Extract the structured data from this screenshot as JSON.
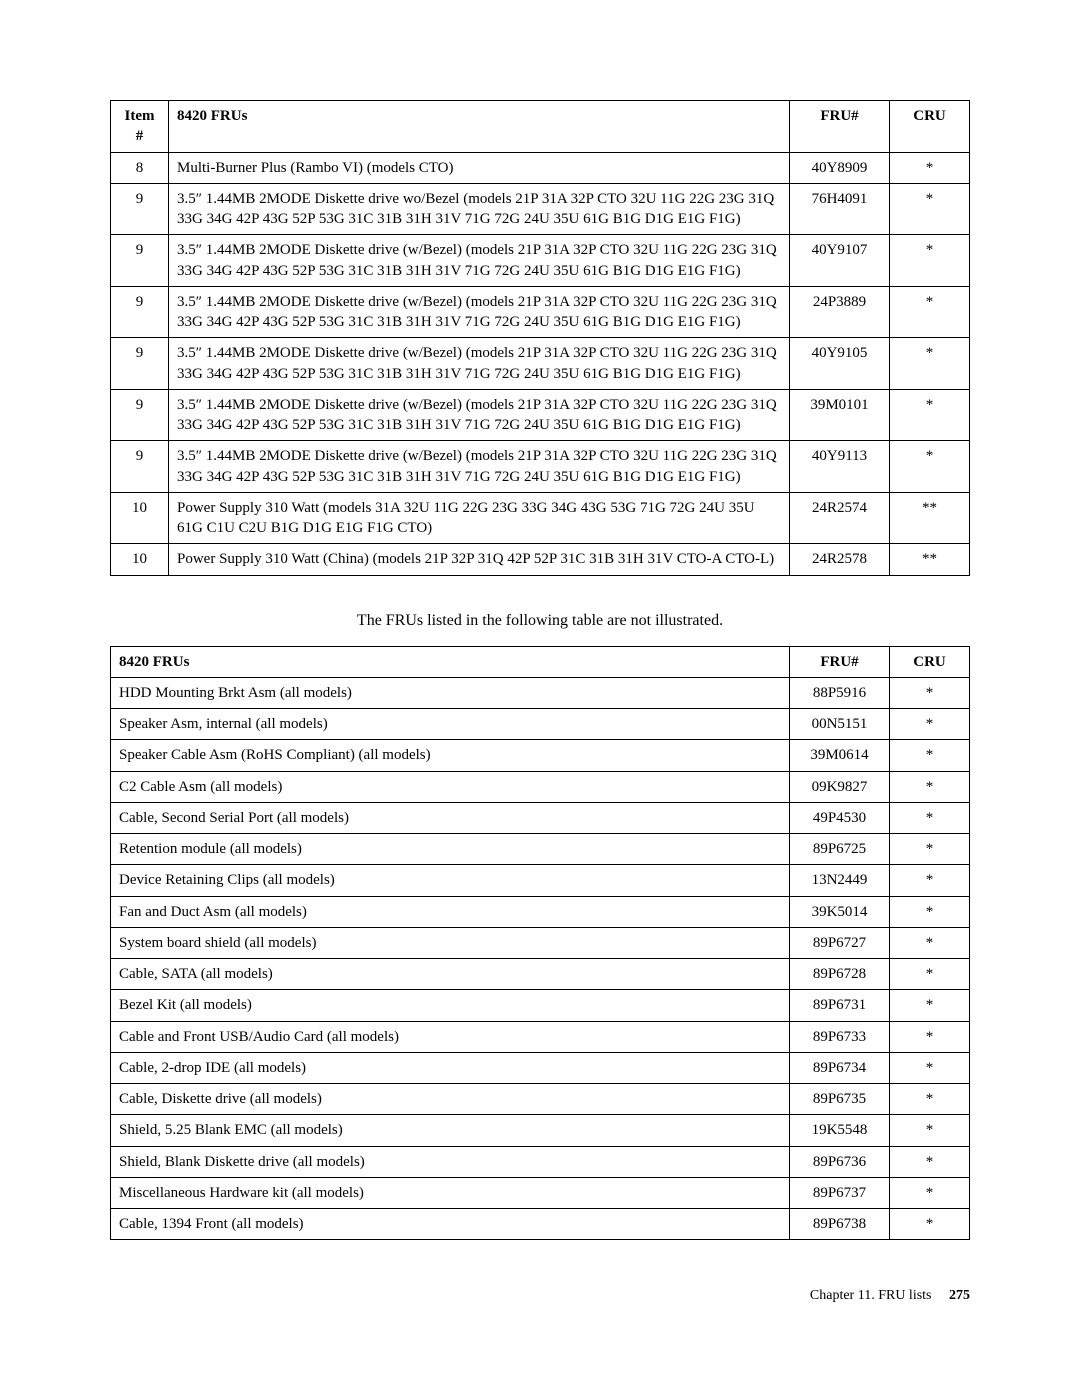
{
  "table1": {
    "headers": {
      "item": "Item #",
      "desc": "8420 FRUs",
      "fru": "FRU#",
      "cru": "CRU"
    },
    "rows": [
      {
        "item": "8",
        "desc": "Multi-Burner Plus (Rambo VI) (models CTO)",
        "fru": "40Y8909",
        "cru": "*"
      },
      {
        "item": "9",
        "desc": "3.5″ 1.44MB 2MODE Diskette drive wo/Bezel (models 21P 31A 32P CTO 32U 11G 22G 23G 31Q 33G 34G 42P 43G 52P 53G 31C 31B 31H 31V 71G 72G 24U 35U 61G B1G D1G E1G F1G)",
        "fru": "76H4091",
        "cru": "*"
      },
      {
        "item": "9",
        "desc": "3.5″ 1.44MB 2MODE Diskette drive (w/Bezel) (models 21P 31A 32P CTO 32U 11G 22G 23G 31Q 33G 34G 42P 43G 52P 53G 31C 31B 31H 31V 71G 72G 24U 35U 61G B1G D1G E1G F1G)",
        "fru": "40Y9107",
        "cru": "*"
      },
      {
        "item": "9",
        "desc": "3.5″ 1.44MB 2MODE Diskette drive (w/Bezel) (models 21P 31A 32P CTO 32U 11G 22G 23G 31Q 33G 34G 42P 43G 52P 53G 31C 31B 31H 31V 71G 72G 24U 35U 61G B1G D1G E1G F1G)",
        "fru": "24P3889",
        "cru": "*"
      },
      {
        "item": "9",
        "desc": "3.5″ 1.44MB 2MODE Diskette drive (w/Bezel) (models 21P 31A 32P CTO 32U 11G 22G 23G 31Q 33G 34G 42P 43G 52P 53G 31C 31B 31H 31V 71G 72G 24U 35U 61G B1G D1G E1G F1G)",
        "fru": "40Y9105",
        "cru": "*"
      },
      {
        "item": "9",
        "desc": "3.5″ 1.44MB 2MODE Diskette drive (w/Bezel) (models 21P 31A 32P CTO 32U 11G 22G 23G 31Q 33G 34G 42P 43G 52P 53G 31C 31B 31H 31V 71G 72G 24U 35U 61G B1G D1G E1G F1G)",
        "fru": "39M0101",
        "cru": "*"
      },
      {
        "item": "9",
        "desc": "3.5″ 1.44MB 2MODE Diskette drive (w/Bezel) (models 21P 31A 32P CTO 32U 11G 22G 23G 31Q 33G 34G 42P 43G 52P 53G 31C 31B 31H 31V 71G 72G 24U 35U 61G B1G D1G E1G F1G)",
        "fru": "40Y9113",
        "cru": "*"
      },
      {
        "item": "10",
        "desc": "Power Supply 310 Watt (models 31A 32U 11G 22G 23G 33G 34G 43G 53G 71G 72G 24U 35U 61G C1U C2U B1G D1G E1G F1G CTO)",
        "fru": "24R2574",
        "cru": "**"
      },
      {
        "item": "10",
        "desc": "Power Supply 310 Watt (China) (models 21P 32P 31Q 42P 52P 31C 31B 31H 31V CTO-A CTO-L)",
        "fru": "24R2578",
        "cru": "**"
      }
    ]
  },
  "caption": "The FRUs listed in the following table are not illustrated.",
  "table2": {
    "headers": {
      "desc": "8420 FRUs",
      "fru": "FRU#",
      "cru": "CRU"
    },
    "rows": [
      {
        "desc": "HDD Mounting Brkt Asm (all models)",
        "fru": "88P5916",
        "cru": "*"
      },
      {
        "desc": "Speaker Asm, internal (all models)",
        "fru": "00N5151",
        "cru": "*"
      },
      {
        "desc": "Speaker Cable Asm (RoHS Compliant) (all models)",
        "fru": "39M0614",
        "cru": "*"
      },
      {
        "desc": "C2 Cable Asm (all models)",
        "fru": "09K9827",
        "cru": "*"
      },
      {
        "desc": "Cable, Second Serial Port (all models)",
        "fru": "49P4530",
        "cru": "*"
      },
      {
        "desc": "Retention module (all models)",
        "fru": "89P6725",
        "cru": "*"
      },
      {
        "desc": "Device Retaining Clips (all models)",
        "fru": "13N2449",
        "cru": "*"
      },
      {
        "desc": "Fan and Duct Asm (all models)",
        "fru": "39K5014",
        "cru": "*"
      },
      {
        "desc": "System board shield (all models)",
        "fru": "89P6727",
        "cru": "*"
      },
      {
        "desc": "Cable, SATA (all models)",
        "fru": "89P6728",
        "cru": "*"
      },
      {
        "desc": "Bezel Kit (all models)",
        "fru": "89P6731",
        "cru": "*"
      },
      {
        "desc": "Cable and Front USB/Audio Card (all models)",
        "fru": "89P6733",
        "cru": "*"
      },
      {
        "desc": "Cable, 2-drop IDE (all models)",
        "fru": "89P6734",
        "cru": "*"
      },
      {
        "desc": "Cable, Diskette drive (all models)",
        "fru": "89P6735",
        "cru": "*"
      },
      {
        "desc": "Shield, 5.25 Blank EMC (all models)",
        "fru": "19K5548",
        "cru": "*"
      },
      {
        "desc": "Shield, Blank Diskette drive (all models)",
        "fru": "89P6736",
        "cru": "*"
      },
      {
        "desc": "Miscellaneous Hardware kit (all models)",
        "fru": "89P6737",
        "cru": "*"
      },
      {
        "desc": "Cable, 1394 Front (all models)",
        "fru": "89P6738",
        "cru": "*"
      }
    ]
  },
  "footer": {
    "chapter": "Chapter 11. FRU lists",
    "page": "275"
  }
}
